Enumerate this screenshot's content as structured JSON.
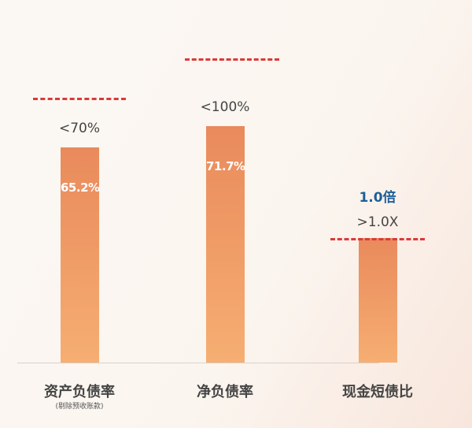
{
  "chart_data": {
    "type": "bar",
    "categories": [
      "资产负债率",
      "净负债率",
      "现金短债比"
    ],
    "category_notes": [
      "(剔除预收账款)",
      "",
      ""
    ],
    "values": [
      65.2,
      71.7,
      1.0
    ],
    "value_labels": [
      "65.2%",
      "71.7%",
      ""
    ],
    "thresholds": [
      "<70%",
      "<100%",
      ">1.0X"
    ],
    "annotations": [
      "",
      "",
      "1.0倍"
    ],
    "colors": {
      "bar_top": "#e98a5c",
      "bar_bottom": "#f6ae72",
      "threshold_line": "#d93a3a",
      "annotation": "#1f5f9a"
    },
    "grid": false,
    "legend": "none"
  }
}
